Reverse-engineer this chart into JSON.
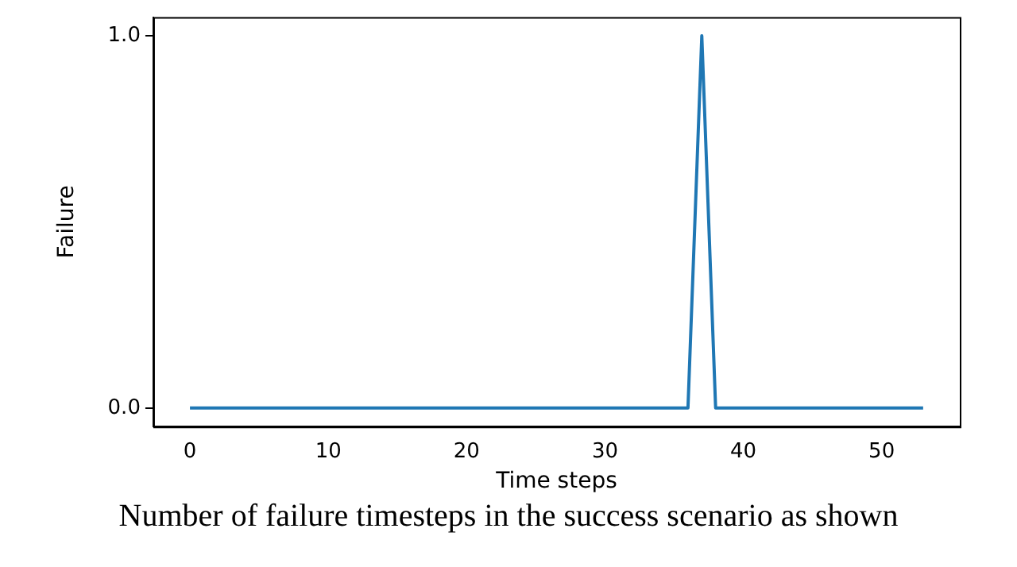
{
  "chart_data": {
    "type": "line",
    "xlabel": "Time steps",
    "ylabel": "Failure",
    "x": [
      0,
      36,
      37,
      38,
      53
    ],
    "series": [
      {
        "color": "#1f77b4",
        "values": [
          0,
          0,
          1,
          0,
          0
        ]
      }
    ],
    "xlim": [
      -2.65,
      55.65
    ],
    "xticks": [
      0,
      10,
      20,
      30,
      40,
      50
    ],
    "ylim": [
      -0.05,
      1.05
    ],
    "yticks": [
      {
        "value": 0,
        "label": "0.0"
      },
      {
        "value": 1,
        "label": "1.0"
      }
    ],
    "grid": false,
    "legend": false,
    "marker": "none",
    "line_style": "solid",
    "annotations": [
      "Number of failure timesteps in the success scenario as shown"
    ]
  }
}
